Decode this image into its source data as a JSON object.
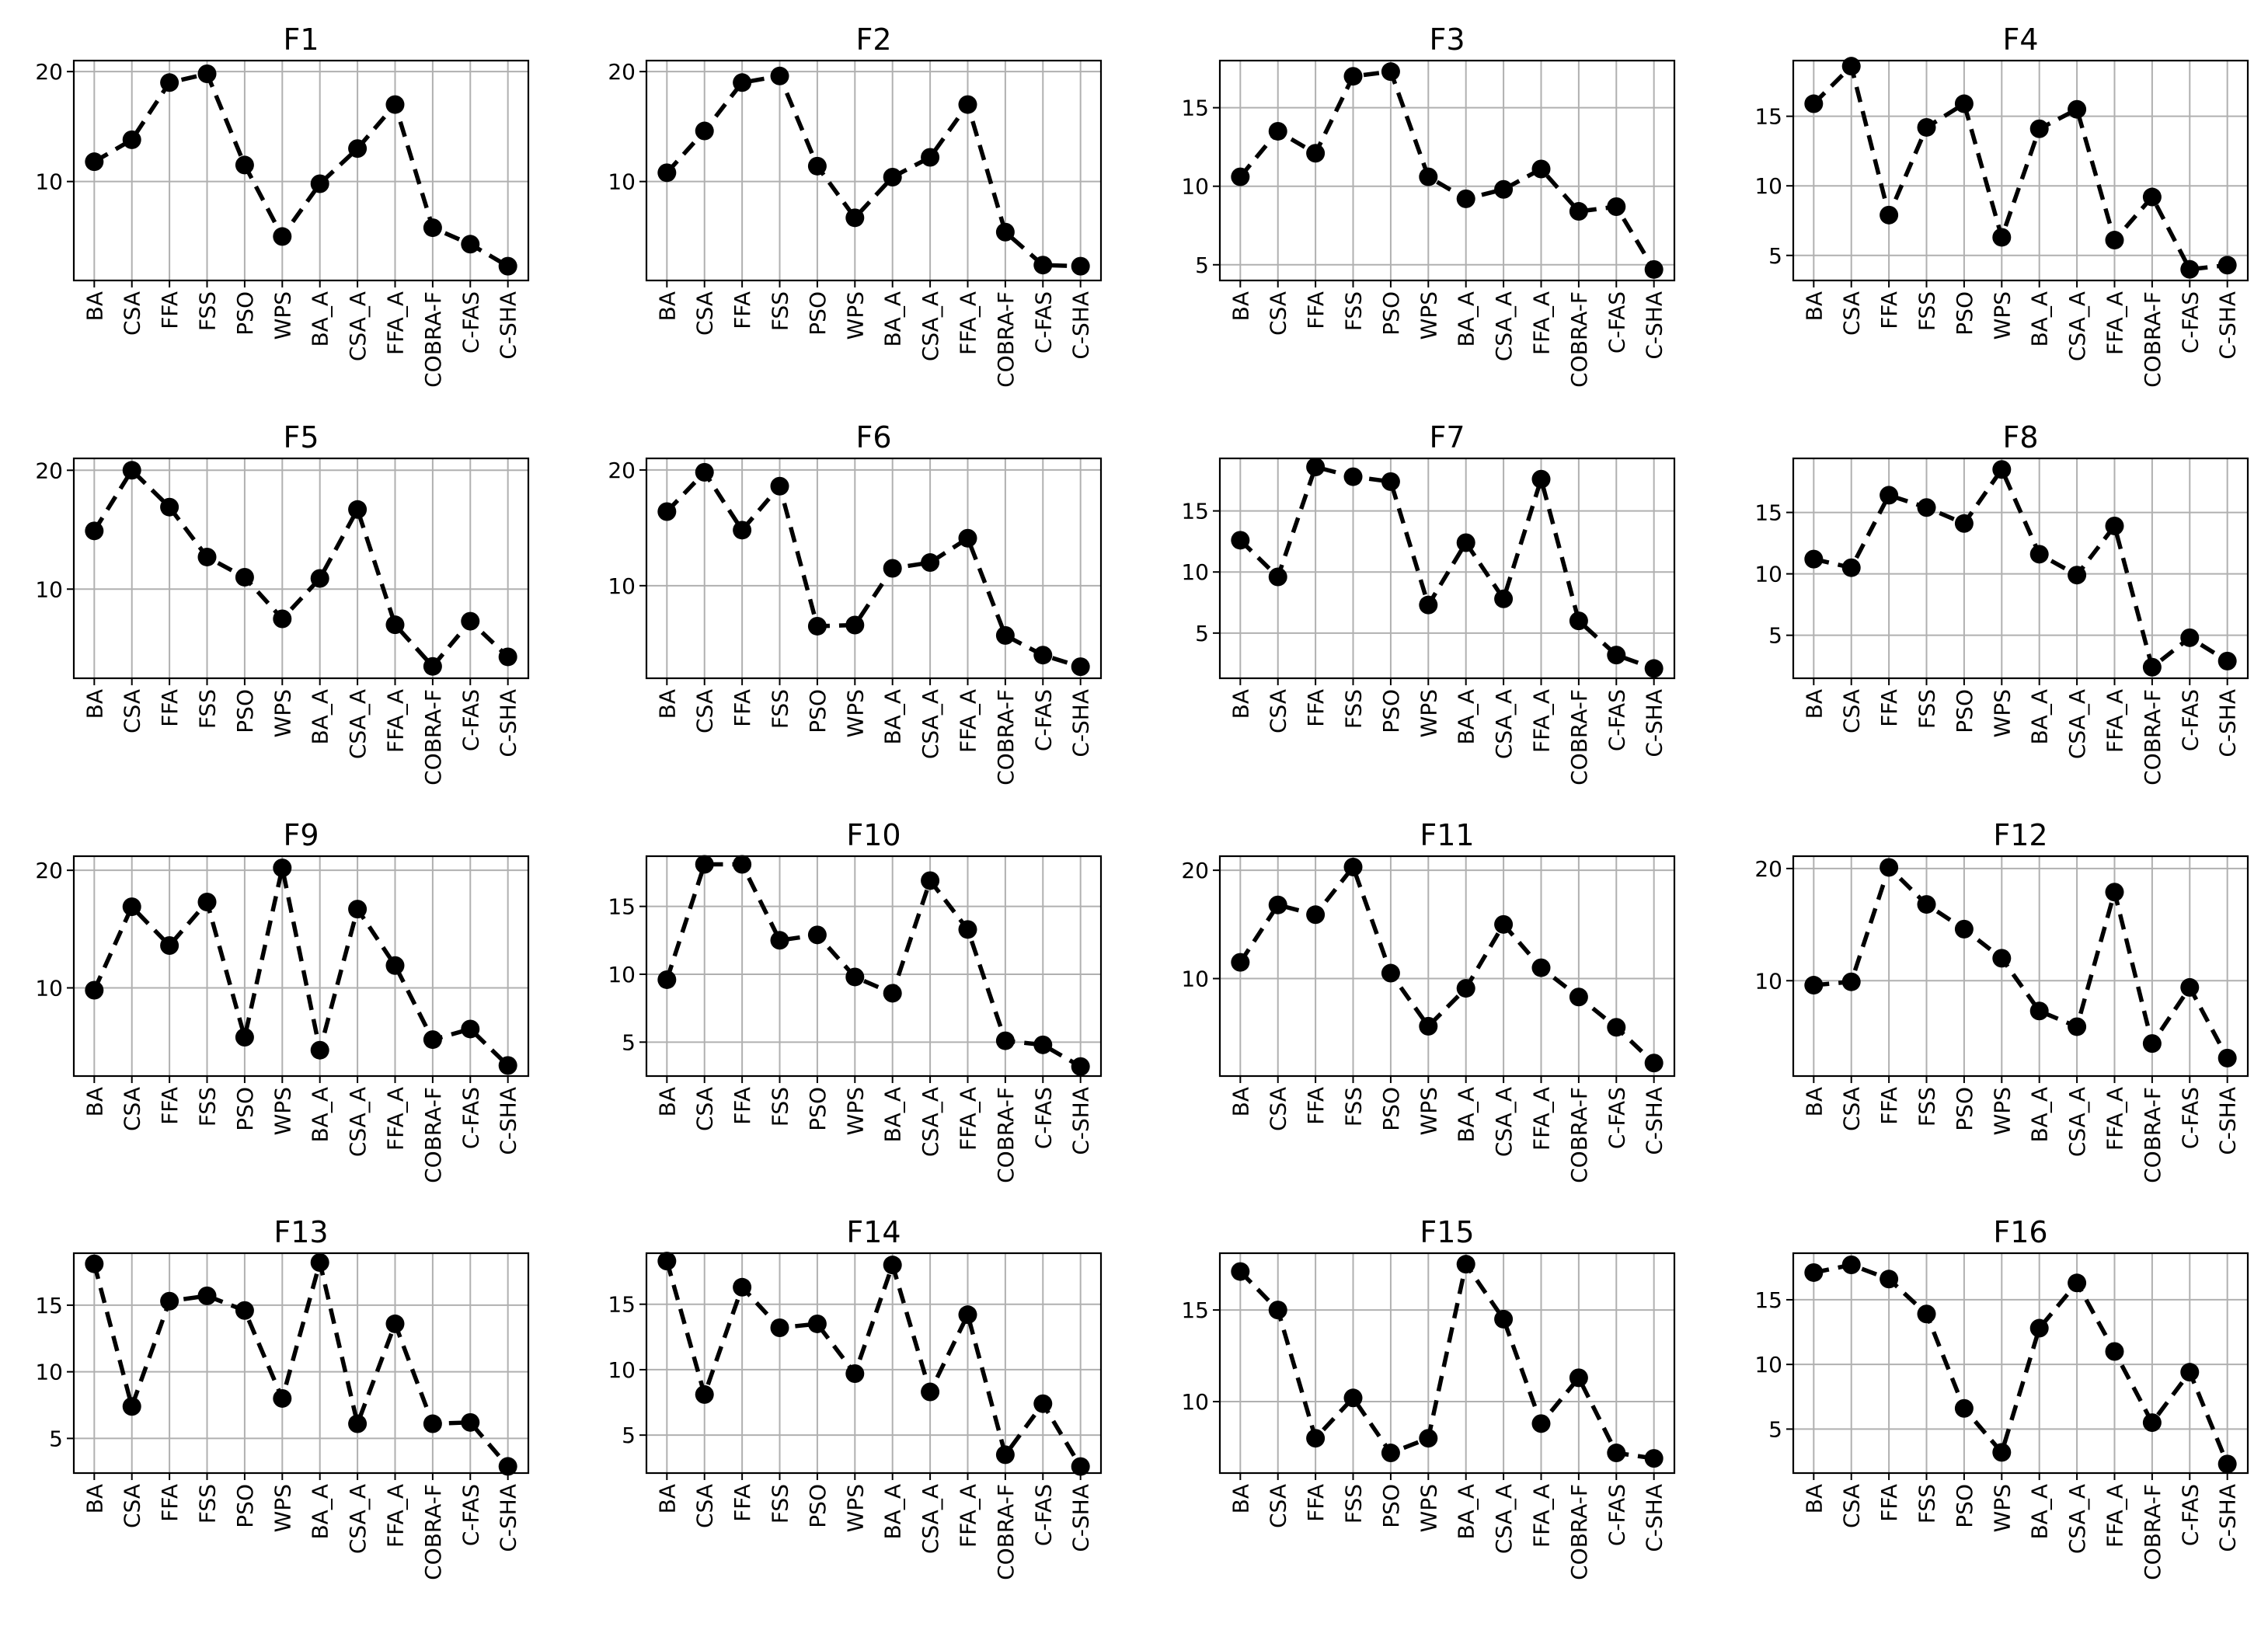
{
  "chart_data": [
    {
      "type": "line",
      "title": "F1",
      "categories": [
        "BA",
        "CSA",
        "FFA",
        "FSS",
        "PSO",
        "WPS",
        "BA_A",
        "CSA_A",
        "FFA_A",
        "COBRA-F",
        "C-FAS",
        "C-SHA"
      ],
      "values": [
        11.8,
        13.8,
        19.0,
        19.8,
        11.5,
        5.0,
        9.8,
        13.0,
        17.0,
        5.8,
        4.3,
        2.3
      ],
      "ylim": [
        1.0,
        21.0
      ],
      "yticks": [
        10,
        20
      ],
      "grid": true,
      "marker": "circle",
      "linestyle": "dashed",
      "color": "#000000"
    },
    {
      "type": "line",
      "title": "F2",
      "categories": [
        "BA",
        "CSA",
        "FFA",
        "FSS",
        "PSO",
        "WPS",
        "BA_A",
        "CSA_A",
        "FFA_A",
        "COBRA-F",
        "C-FAS",
        "C-SHA"
      ],
      "values": [
        10.8,
        14.6,
        19.0,
        19.6,
        11.4,
        6.7,
        10.4,
        12.2,
        17.0,
        5.4,
        2.4,
        2.3
      ],
      "ylim": [
        1.0,
        21.0
      ],
      "yticks": [
        10,
        20
      ],
      "grid": true,
      "marker": "circle",
      "linestyle": "dashed",
      "color": "#000000"
    },
    {
      "type": "line",
      "title": "F3",
      "categories": [
        "BA",
        "CSA",
        "FFA",
        "FSS",
        "PSO",
        "WPS",
        "BA_A",
        "CSA_A",
        "FFA_A",
        "COBRA-F",
        "C-FAS",
        "C-SHA"
      ],
      "values": [
        10.6,
        13.5,
        12.1,
        17.0,
        17.3,
        10.6,
        9.2,
        9.8,
        11.1,
        8.4,
        8.7,
        4.7
      ],
      "ylim": [
        4.0,
        18.0
      ],
      "yticks": [
        5,
        10,
        15
      ],
      "grid": true,
      "marker": "circle",
      "linestyle": "dashed",
      "color": "#000000"
    },
    {
      "type": "line",
      "title": "F4",
      "categories": [
        "BA",
        "CSA",
        "FFA",
        "FSS",
        "PSO",
        "WPS",
        "BA_A",
        "CSA_A",
        "FFA_A",
        "COBRA-F",
        "C-FAS",
        "C-SHA"
      ],
      "values": [
        15.9,
        18.6,
        7.9,
        14.2,
        15.9,
        6.3,
        14.1,
        15.5,
        6.1,
        9.2,
        4.0,
        4.3
      ],
      "ylim": [
        3.2,
        19.0
      ],
      "yticks": [
        5,
        10,
        15
      ],
      "grid": true,
      "marker": "circle",
      "linestyle": "dashed",
      "color": "#000000"
    },
    {
      "type": "line",
      "title": "F5",
      "categories": [
        "BA",
        "CSA",
        "FFA",
        "FSS",
        "PSO",
        "WPS",
        "BA_A",
        "CSA_A",
        "FFA_A",
        "COBRA-F",
        "C-FAS",
        "C-SHA"
      ],
      "values": [
        14.9,
        20.0,
        16.9,
        12.7,
        11.0,
        7.5,
        10.9,
        16.7,
        7.0,
        3.5,
        7.3,
        4.3
      ],
      "ylim": [
        2.5,
        21.0
      ],
      "yticks": [
        10,
        20
      ],
      "grid": true,
      "marker": "circle",
      "linestyle": "dashed",
      "color": "#000000"
    },
    {
      "type": "line",
      "title": "F6",
      "categories": [
        "BA",
        "CSA",
        "FFA",
        "FSS",
        "PSO",
        "WPS",
        "BA_A",
        "CSA_A",
        "FFA_A",
        "COBRA-F",
        "C-FAS",
        "C-SHA"
      ],
      "values": [
        16.4,
        19.8,
        14.8,
        18.6,
        6.5,
        6.6,
        11.5,
        12.0,
        14.1,
        5.7,
        4.0,
        3.0
      ],
      "ylim": [
        2.0,
        21.0
      ],
      "yticks": [
        10,
        20
      ],
      "grid": true,
      "marker": "circle",
      "linestyle": "dashed",
      "color": "#000000"
    },
    {
      "type": "line",
      "title": "F7",
      "categories": [
        "BA",
        "CSA",
        "FFA",
        "FSS",
        "PSO",
        "WPS",
        "BA_A",
        "CSA_A",
        "FFA_A",
        "COBRA-F",
        "C-FAS",
        "C-SHA"
      ],
      "values": [
        12.6,
        9.6,
        18.6,
        17.8,
        17.4,
        7.3,
        12.4,
        7.8,
        17.6,
        6.0,
        3.2,
        2.1
      ],
      "ylim": [
        1.3,
        19.3
      ],
      "yticks": [
        5,
        10,
        15
      ],
      "grid": true,
      "marker": "circle",
      "linestyle": "dashed",
      "color": "#000000"
    },
    {
      "type": "line",
      "title": "F8",
      "categories": [
        "BA",
        "CSA",
        "FFA",
        "FSS",
        "PSO",
        "WPS",
        "BA_A",
        "CSA_A",
        "FFA_A",
        "COBRA-F",
        "C-FAS",
        "C-SHA"
      ],
      "values": [
        11.2,
        10.5,
        16.4,
        15.4,
        14.1,
        18.5,
        11.6,
        9.9,
        13.9,
        2.4,
        4.8,
        2.9
      ],
      "ylim": [
        1.5,
        19.4
      ],
      "yticks": [
        5,
        10,
        15
      ],
      "grid": true,
      "marker": "circle",
      "linestyle": "dashed",
      "color": "#000000"
    },
    {
      "type": "line",
      "title": "F9",
      "categories": [
        "BA",
        "CSA",
        "FFA",
        "FSS",
        "PSO",
        "WPS",
        "BA_A",
        "CSA_A",
        "FFA_A",
        "COBRA-F",
        "C-FAS",
        "C-SHA"
      ],
      "values": [
        9.8,
        16.9,
        13.6,
        17.3,
        5.8,
        20.2,
        4.7,
        16.7,
        11.9,
        5.6,
        6.5,
        3.4
      ],
      "ylim": [
        2.5,
        21.2
      ],
      "yticks": [
        10,
        20
      ],
      "grid": true,
      "marker": "circle",
      "linestyle": "dashed",
      "color": "#000000"
    },
    {
      "type": "line",
      "title": "F10",
      "categories": [
        "BA",
        "CSA",
        "FFA",
        "FSS",
        "PSO",
        "WPS",
        "BA_A",
        "CSA_A",
        "FFA_A",
        "COBRA-F",
        "C-FAS",
        "C-SHA"
      ],
      "values": [
        9.6,
        18.1,
        18.1,
        12.5,
        12.9,
        9.8,
        8.6,
        16.9,
        13.3,
        5.1,
        4.8,
        3.2
      ],
      "ylim": [
        2.5,
        18.7
      ],
      "yticks": [
        5,
        10,
        15
      ],
      "grid": true,
      "marker": "circle",
      "linestyle": "dashed",
      "color": "#000000"
    },
    {
      "type": "line",
      "title": "F11",
      "categories": [
        "BA",
        "CSA",
        "FFA",
        "FSS",
        "PSO",
        "WPS",
        "BA_A",
        "CSA_A",
        "FFA_A",
        "COBRA-F",
        "C-FAS",
        "C-SHA"
      ],
      "values": [
        11.5,
        16.8,
        15.9,
        20.3,
        10.5,
        5.6,
        9.1,
        15.0,
        11.0,
        8.3,
        5.5,
        2.2
      ],
      "ylim": [
        1.0,
        21.3
      ],
      "yticks": [
        10,
        20
      ],
      "grid": true,
      "marker": "circle",
      "linestyle": "dashed",
      "color": "#000000"
    },
    {
      "type": "line",
      "title": "F12",
      "categories": [
        "BA",
        "CSA",
        "FFA",
        "FSS",
        "PSO",
        "WPS",
        "BA_A",
        "CSA_A",
        "FFA_A",
        "COBRA-F",
        "C-FAS",
        "C-SHA"
      ],
      "values": [
        9.6,
        9.9,
        20.1,
        16.8,
        14.6,
        12.0,
        7.3,
        5.9,
        17.9,
        4.4,
        9.4,
        3.1
      ],
      "ylim": [
        1.5,
        21.1
      ],
      "yticks": [
        10,
        20
      ],
      "grid": true,
      "marker": "circle",
      "linestyle": "dashed",
      "color": "#000000"
    },
    {
      "type": "line",
      "title": "F13",
      "categories": [
        "BA",
        "CSA",
        "FFA",
        "FSS",
        "PSO",
        "WPS",
        "BA_A",
        "CSA_A",
        "FFA_A",
        "COBRA-F",
        "C-FAS",
        "C-SHA"
      ],
      "values": [
        18.1,
        7.4,
        15.3,
        15.7,
        14.6,
        8.0,
        18.2,
        6.1,
        13.6,
        6.1,
        6.2,
        2.9
      ],
      "ylim": [
        2.4,
        18.9
      ],
      "yticks": [
        5,
        10,
        15
      ],
      "grid": true,
      "marker": "circle",
      "linestyle": "dashed",
      "color": "#000000"
    },
    {
      "type": "line",
      "title": "F14",
      "categories": [
        "BA",
        "CSA",
        "FFA",
        "FSS",
        "PSO",
        "WPS",
        "BA_A",
        "CSA_A",
        "FFA_A",
        "COBRA-F",
        "C-FAS",
        "C-SHA"
      ],
      "values": [
        18.3,
        8.1,
        16.3,
        13.2,
        13.5,
        9.7,
        18.0,
        8.3,
        14.2,
        3.5,
        7.4,
        2.6
      ],
      "ylim": [
        2.1,
        18.9
      ],
      "yticks": [
        5,
        10,
        15
      ],
      "grid": true,
      "marker": "circle",
      "linestyle": "dashed",
      "color": "#000000"
    },
    {
      "type": "line",
      "title": "F15",
      "categories": [
        "BA",
        "CSA",
        "FFA",
        "FSS",
        "PSO",
        "WPS",
        "BA_A",
        "CSA_A",
        "FFA_A",
        "COBRA-F",
        "C-FAS",
        "C-SHA"
      ],
      "values": [
        17.1,
        15.0,
        8.0,
        10.2,
        7.2,
        8.0,
        17.5,
        14.5,
        8.8,
        11.3,
        7.2,
        6.9
      ],
      "ylim": [
        6.1,
        18.1
      ],
      "yticks": [
        10,
        15
      ],
      "grid": true,
      "marker": "circle",
      "linestyle": "dashed",
      "color": "#000000"
    },
    {
      "type": "line",
      "title": "F16",
      "categories": [
        "BA",
        "CSA",
        "FFA",
        "FSS",
        "PSO",
        "WPS",
        "BA_A",
        "CSA_A",
        "FFA_A",
        "COBRA-F",
        "C-FAS",
        "C-SHA"
      ],
      "values": [
        17.1,
        17.7,
        16.6,
        13.9,
        6.6,
        3.2,
        12.8,
        16.3,
        11.0,
        5.5,
        9.4,
        2.3
      ],
      "ylim": [
        1.6,
        18.6
      ],
      "yticks": [
        5,
        10,
        15
      ],
      "grid": true,
      "marker": "circle",
      "linestyle": "dashed",
      "color": "#000000"
    }
  ]
}
